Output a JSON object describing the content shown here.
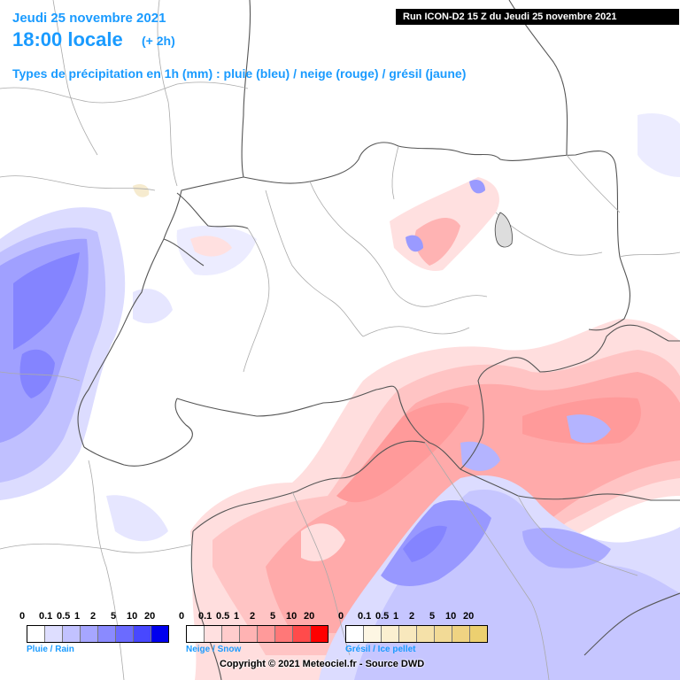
{
  "header": {
    "date": "Jeudi 25 novembre 2021",
    "time": "18:00 locale",
    "offset": "(+ 2h)",
    "types": "Types de précipitation en 1h (mm) : pluie (bleu) / neige (rouge) / grésil (jaune)",
    "run": "Run ICON-D2 15 Z du Jeudi 25 novembre 2021"
  },
  "colors": {
    "title": "#1a9bff",
    "rain": "#6b6bff",
    "snow": "#ff9a9a",
    "borders": "#666666"
  },
  "legends": {
    "ticks": [
      "0",
      "0.1",
      "0.5",
      "1",
      "2",
      "5",
      "10",
      "20"
    ],
    "rain": {
      "label": "Pluie / Rain",
      "colors": [
        "#ffffff",
        "#dedeff",
        "#c2c2ff",
        "#a6a6ff",
        "#8a8aff",
        "#6b6bff",
        "#4848ff",
        "#0000ee"
      ]
    },
    "snow": {
      "label": "Neige / Snow",
      "colors": [
        "#ffffff",
        "#ffe0e0",
        "#ffcccc",
        "#ffb3b3",
        "#ff9a9a",
        "#ff7878",
        "#ff4b4b",
        "#ff0000"
      ]
    },
    "ice": {
      "label": "Grésil / Ice pellet",
      "colors": [
        "#ffffff",
        "#fdf6e3",
        "#fbefd0",
        "#f8e8bd",
        "#f5e1a9",
        "#f2da96",
        "#efd382",
        "#ecd070"
      ]
    }
  },
  "copyright": "Copyright © 2021 Meteociel.fr - Source DWD"
}
